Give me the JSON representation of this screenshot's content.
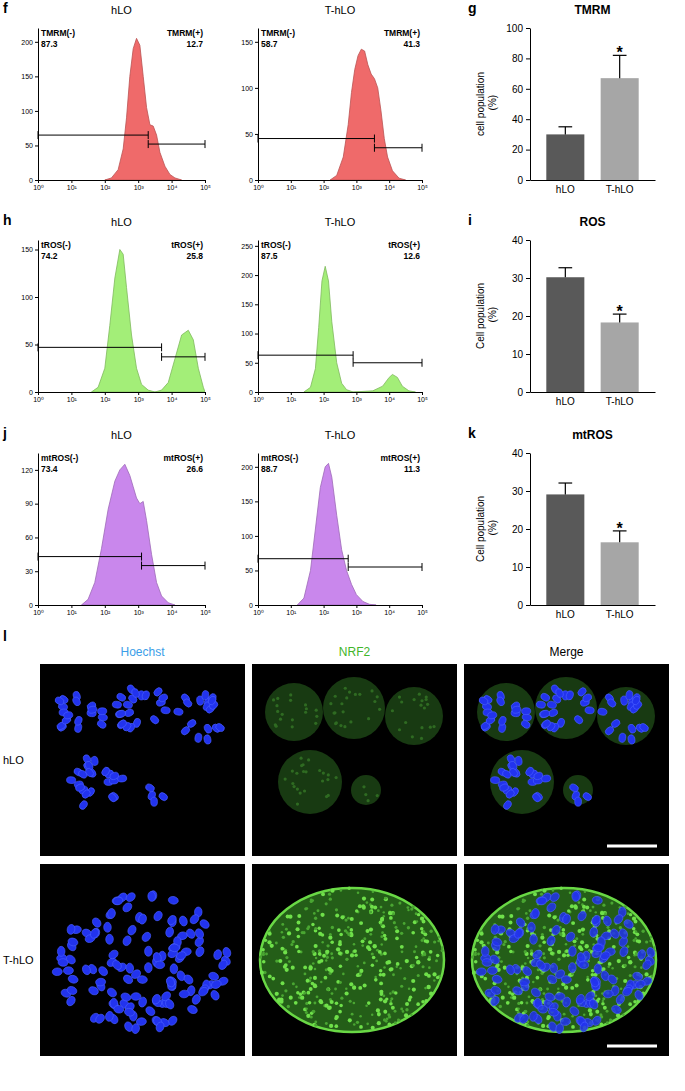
{
  "chart_data": [
    {
      "type": "area",
      "panel": "f",
      "title": "hLO",
      "color": "#ef6a6a",
      "log": "x",
      "x": [
        100,
        158,
        251,
        355,
        447,
        562,
        708,
        891,
        1122,
        1413,
        1778,
        2239,
        2818,
        3548,
        4467,
        6310,
        8913,
        12589,
        19953
      ],
      "values": [
        0,
        3,
        15,
        45,
        90,
        150,
        190,
        205,
        195,
        150,
        105,
        80,
        78,
        65,
        40,
        20,
        8,
        3,
        0
      ],
      "xlim": [
        1,
        100000
      ],
      "xticks": [
        {
          "value": 1,
          "label": "10⁰"
        },
        {
          "value": 10,
          "label": "10¹"
        },
        {
          "value": 100,
          "label": "10²"
        },
        {
          "value": 1000,
          "label": "10³"
        },
        {
          "value": 10000,
          "label": "10⁴"
        },
        {
          "value": 100000,
          "label": "10⁵"
        }
      ],
      "ylim": [
        0,
        220
      ],
      "yticks": [
        0,
        50,
        100,
        150,
        200
      ],
      "gates": [
        {
          "label": "TMRM(-)",
          "percent": 87.3,
          "range": [
            1,
            1995
          ],
          "y": 65
        },
        {
          "label": "TMRM(+)",
          "percent": 12.7,
          "range": [
            1995,
            100000
          ],
          "y": 52
        }
      ]
    },
    {
      "type": "area",
      "title": "T-hLO",
      "color": "#ef6a6a",
      "log": "x",
      "x": [
        158,
        251,
        398,
        562,
        708,
        891,
        1122,
        1413,
        1778,
        2239,
        2818,
        3548,
        4467,
        5623,
        7079,
        8913,
        12589,
        19953,
        31623
      ],
      "values": [
        0,
        5,
        25,
        60,
        95,
        120,
        135,
        142,
        140,
        125,
        115,
        110,
        100,
        75,
        45,
        25,
        10,
        2,
        0
      ],
      "xlim": [
        1,
        100000
      ],
      "xticks": [
        {
          "value": 1,
          "label": "10⁰"
        },
        {
          "value": 10,
          "label": "10¹"
        },
        {
          "value": 100,
          "label": "10²"
        },
        {
          "value": 1000,
          "label": "10³"
        },
        {
          "value": 10000,
          "label": "10⁴"
        },
        {
          "value": 100000,
          "label": "10⁵"
        }
      ],
      "ylim": [
        0,
        165
      ],
      "yticks": [
        0,
        50,
        100,
        150
      ],
      "gates": [
        {
          "label": "TMRM(-)",
          "percent": 58.7,
          "range": [
            1,
            3548
          ],
          "y": 45
        },
        {
          "label": "TMRM(+)",
          "percent": 41.3,
          "range": [
            3548,
            100000
          ],
          "y": 35
        }
      ]
    },
    {
      "type": "bar",
      "panel": "g",
      "title": "TMRM",
      "ylabel": "cell population (%)",
      "categories": [
        "hLO",
        "T-hLO"
      ],
      "values": [
        30,
        67
      ],
      "errors": [
        5,
        15
      ],
      "colors": [
        "#595959",
        "#a6a6a6"
      ],
      "ylim": [
        0,
        100
      ],
      "yticks": [
        0,
        20,
        40,
        60,
        80,
        100
      ],
      "significance": {
        "text": "*",
        "index": 1
      }
    },
    {
      "type": "area",
      "panel": "h",
      "title": "hLO",
      "color": "#a3ee78",
      "log": "x",
      "x": [
        39.8,
        63.1,
        100,
        141,
        200,
        282,
        355,
        447,
        631,
        891,
        1259,
        1995,
        3162,
        5012,
        7943,
        12589,
        19953,
        31623,
        44668,
        63096,
        89125,
        100000
      ],
      "values": [
        0,
        5,
        25,
        70,
        120,
        150,
        145,
        110,
        60,
        25,
        8,
        2,
        0,
        2,
        10,
        35,
        60,
        65,
        55,
        25,
        5,
        0
      ],
      "xlim": [
        1,
        100000
      ],
      "xticks": [
        {
          "value": 1,
          "label": "10⁰"
        },
        {
          "value": 10,
          "label": "10¹"
        },
        {
          "value": 100,
          "label": "10²"
        },
        {
          "value": 1000,
          "label": "10³"
        },
        {
          "value": 10000,
          "label": "10⁴"
        },
        {
          "value": 100000,
          "label": "10⁵"
        }
      ],
      "ylim": [
        0,
        160
      ],
      "yticks": [
        0,
        50,
        100,
        150
      ],
      "gates": [
        {
          "label": "tROS(-)",
          "percent": 74.2,
          "range": [
            1,
            5012
          ],
          "y": 47
        },
        {
          "label": "tROS(+)",
          "percent": 25.8,
          "range": [
            5012,
            100000
          ],
          "y": 37
        }
      ]
    },
    {
      "type": "area",
      "title": "T-hLO",
      "color": "#a3ee78",
      "log": "x",
      "x": [
        25.1,
        39.8,
        56.2,
        70.8,
        89.1,
        112,
        141,
        178,
        251,
        355,
        501,
        794,
        3162,
        6310,
        10000,
        12589,
        17783,
        25119,
        39811,
        63096
      ],
      "values": [
        0,
        8,
        40,
        110,
        190,
        215,
        190,
        120,
        50,
        15,
        4,
        0,
        2,
        10,
        25,
        30,
        25,
        10,
        2,
        0
      ],
      "xlim": [
        1,
        100000
      ],
      "xticks": [
        {
          "value": 1,
          "label": "10⁰"
        },
        {
          "value": 10,
          "label": "10¹"
        },
        {
          "value": 100,
          "label": "10²"
        },
        {
          "value": 1000,
          "label": "10³"
        },
        {
          "value": 10000,
          "label": "10⁴"
        },
        {
          "value": 100000,
          "label": "10⁵"
        }
      ],
      "ylim": [
        0,
        260
      ],
      "yticks": [
        0,
        50,
        100,
        150,
        200,
        250
      ],
      "gates": [
        {
          "label": "tROS(-)",
          "percent": 87.5,
          "range": [
            1,
            794
          ],
          "y": 63
        },
        {
          "label": "tROS(+)",
          "percent": 12.6,
          "range": [
            794,
            100000
          ],
          "y": 50
        }
      ]
    },
    {
      "type": "bar",
      "panel": "i",
      "title": "ROS",
      "ylabel": "Cell population (%)",
      "categories": [
        "hLO",
        "T-hLO"
      ],
      "values": [
        30.2,
        18.3
      ],
      "errors": [
        2.5,
        2.2
      ],
      "colors": [
        "#595959",
        "#a6a6a6"
      ],
      "ylim": [
        0,
        40
      ],
      "yticks": [
        0,
        10,
        20,
        30,
        40
      ],
      "significance": {
        "text": "*",
        "index": 1
      }
    },
    {
      "type": "area",
      "panel": "j",
      "title": "hLO",
      "color": "#c987ec",
      "log": "x",
      "x": [
        20,
        31.6,
        50.1,
        79.4,
        126,
        200,
        282,
        398,
        562,
        708,
        891,
        1122,
        1413,
        1778,
        2512,
        3548,
        5012,
        7943,
        12589
      ],
      "values": [
        0,
        5,
        20,
        50,
        85,
        110,
        120,
        125,
        115,
        105,
        95,
        90,
        92,
        75,
        45,
        20,
        8,
        2,
        0
      ],
      "xlim": [
        1,
        100000
      ],
      "xticks": [
        {
          "value": 1,
          "label": "10⁰"
        },
        {
          "value": 10,
          "label": "10¹"
        },
        {
          "value": 100,
          "label": "10²"
        },
        {
          "value": 1000,
          "label": "10³"
        },
        {
          "value": 10000,
          "label": "10⁴"
        },
        {
          "value": 100000,
          "label": "10⁵"
        }
      ],
      "ylim": [
        0,
        135
      ],
      "yticks": [
        0,
        30,
        60,
        90,
        120
      ],
      "gates": [
        {
          "label": "mtROS(-)",
          "percent": 73.4,
          "range": [
            1,
            1259
          ],
          "y": 43
        },
        {
          "label": "mtROS(+)",
          "percent": 26.6,
          "range": [
            1259,
            100000
          ],
          "y": 35
        }
      ]
    },
    {
      "type": "area",
      "title": "T-hLO",
      "color": "#c987ec",
      "log": "x",
      "x": [
        15.8,
        25.1,
        39.8,
        56.2,
        79.4,
        112,
        141,
        178,
        251,
        355,
        501,
        708,
        1000,
        1585,
        2512,
        3981
      ],
      "values": [
        0,
        10,
        50,
        110,
        170,
        200,
        205,
        185,
        130,
        80,
        50,
        30,
        15,
        5,
        1,
        0
      ],
      "xlim": [
        1,
        100000
      ],
      "xticks": [
        {
          "value": 1,
          "label": "10⁰"
        },
        {
          "value": 10,
          "label": "10¹"
        },
        {
          "value": 100,
          "label": "10²"
        },
        {
          "value": 1000,
          "label": "10³"
        },
        {
          "value": 10000,
          "label": "10⁴"
        },
        {
          "value": 100000,
          "label": "10⁵"
        }
      ],
      "ylim": [
        0,
        220
      ],
      "yticks": [
        0,
        50,
        100,
        150,
        200
      ],
      "gates": [
        {
          "label": "mtROS(-)",
          "percent": 88.7,
          "range": [
            1,
            562
          ],
          "y": 67
        },
        {
          "label": "mtROS(+)",
          "percent": 11.3,
          "range": [
            562,
            100000
          ],
          "y": 55
        }
      ]
    },
    {
      "type": "bar",
      "panel": "k",
      "title": "mtROS",
      "ylabel": "Cell population (%)",
      "categories": [
        "hLO",
        "T-hLO"
      ],
      "values": [
        29.1,
        16.5
      ],
      "errors": [
        3,
        3
      ],
      "colors": [
        "#595959",
        "#a6a6a6"
      ],
      "ylim": [
        0,
        40
      ],
      "yticks": [
        0,
        10,
        20,
        30,
        40
      ],
      "significance": {
        "text": "*",
        "index": 1
      }
    }
  ],
  "image_panel": {
    "panel": "l",
    "columns": [
      "Hoechst",
      "NRF2",
      "Merge"
    ],
    "colors": [
      "#3a9ee8",
      "#3fb52a",
      "#000000"
    ],
    "rows": [
      "hLO",
      "T-hLO"
    ]
  }
}
